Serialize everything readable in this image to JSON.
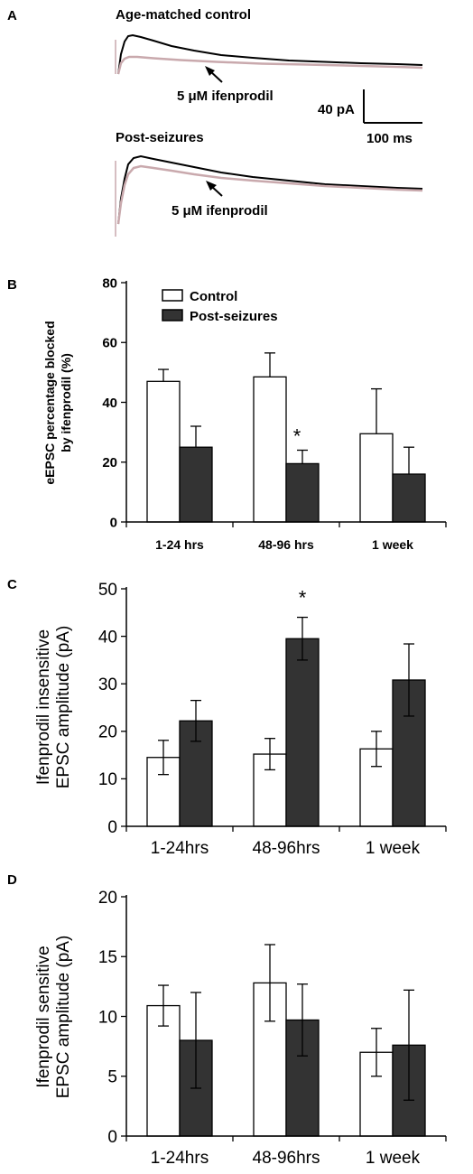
{
  "panel_a": {
    "letter": "A",
    "trace_groups": [
      {
        "title": "Age-matched control",
        "drug_label": "5 μM ifenprodil"
      },
      {
        "title": "Post-seizures",
        "drug_label": "5 μM ifenprodil"
      }
    ],
    "scale_bar": {
      "y_label": "40 pA",
      "x_label": "100 ms"
    },
    "colors": {
      "control_trace": "#000000",
      "drug_trace": "#c9a9ad"
    }
  },
  "chart_data": [
    {
      "panel": "B",
      "type": "bar",
      "categories": [
        "1-24 hrs",
        "48-96 hrs",
        "1 week"
      ],
      "ylabel": "eEPSC percentage blocked by ifenprodil (%)",
      "ylabel_lines": [
        "eEPSC percentage blocked",
        "by ifenprodil (%)"
      ],
      "ylim": [
        0,
        80
      ],
      "yticks": [
        0,
        20,
        40,
        60,
        80
      ],
      "legend": {
        "placement": "top-left",
        "entries": [
          "Control",
          "Post-seizures"
        ]
      },
      "series": [
        {
          "name": "Control",
          "color": "#ffffff",
          "values": [
            47,
            48.5,
            29.5
          ],
          "errors": [
            4,
            8,
            15
          ]
        },
        {
          "name": "Post-seizures",
          "color": "#333333",
          "values": [
            25,
            19.5,
            16
          ],
          "errors": [
            7,
            4.5,
            9
          ]
        }
      ],
      "error_style": "upper",
      "annotations": [
        {
          "text": "*",
          "category": "48-96 hrs"
        }
      ]
    },
    {
      "panel": "C",
      "type": "bar",
      "categories": [
        "1-24hrs",
        "48-96hrs",
        "1 week"
      ],
      "ylabel": "Ifenprodil insensitive EPSC amplitude (pA)",
      "ylabel_lines": [
        "Ifenprodil insensitive",
        "EPSC amplitude (pA)"
      ],
      "ylim": [
        0,
        50
      ],
      "yticks": [
        0,
        10,
        20,
        30,
        40,
        50
      ],
      "series": [
        {
          "color": "#ffffff",
          "values": [
            14.5,
            15.2,
            16.3
          ],
          "errors": [
            3.6,
            3.3,
            3.7
          ]
        },
        {
          "color": "#333333",
          "values": [
            22.2,
            39.5,
            30.8
          ],
          "errors": [
            4.3,
            4.5,
            7.6
          ]
        }
      ],
      "error_style": "both",
      "annotations": [
        {
          "text": "*",
          "category": "48-96hrs"
        }
      ]
    },
    {
      "panel": "D",
      "type": "bar",
      "categories": [
        "1-24hrs",
        "48-96hrs",
        "1 week"
      ],
      "ylabel": "Ifenprodil sensitive EPSC amplitude (pA)",
      "ylabel_lines": [
        "Ifenprodil sensitive",
        "EPSC amplitude (pA)"
      ],
      "ylim": [
        0,
        20
      ],
      "yticks": [
        0,
        5,
        10,
        15,
        20
      ],
      "series": [
        {
          "color": "#ffffff",
          "values": [
            10.9,
            12.8,
            7.0
          ],
          "errors": [
            1.7,
            3.2,
            2.0
          ]
        },
        {
          "color": "#333333",
          "values": [
            8.0,
            9.7,
            7.6
          ],
          "errors": [
            4.0,
            3.0,
            4.6
          ]
        }
      ],
      "error_style": "both",
      "annotations": []
    }
  ]
}
